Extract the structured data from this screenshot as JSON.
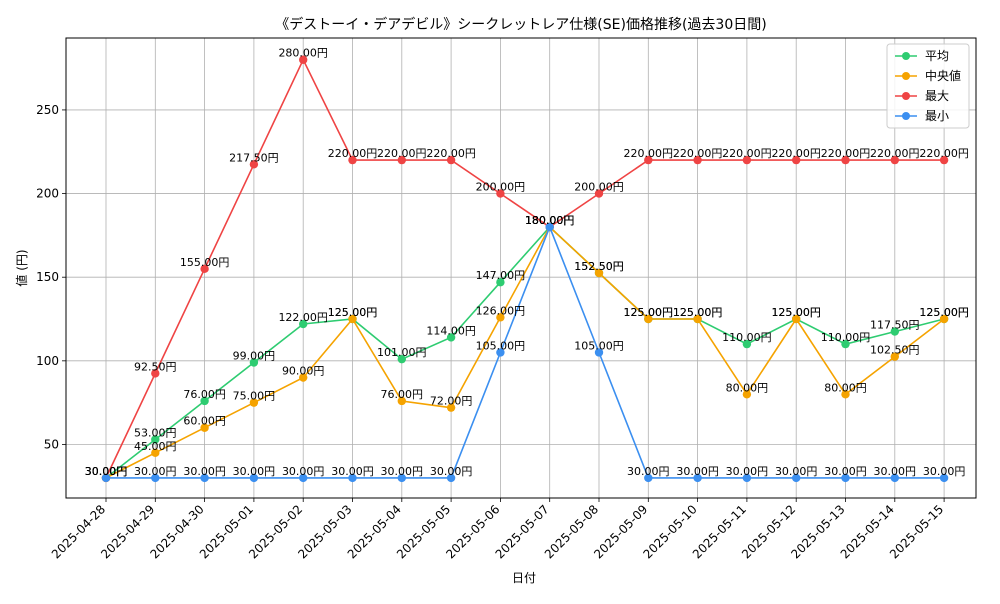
{
  "chart_data": {
    "type": "line",
    "title": "《デストーイ・デアデビル》シークレットレア仕様(SE)価格推移(過去30日間)",
    "xlabel": "日付",
    "ylabel": "値 (円)",
    "ylim": [
      18,
      293
    ],
    "yticks": [
      50,
      100,
      150,
      200,
      250
    ],
    "grid": true,
    "legend_position": "top-right",
    "unit_suffix": "円",
    "categories": [
      "2025-04-28",
      "2025-04-29",
      "2025-04-30",
      "2025-05-01",
      "2025-05-02",
      "2025-05-03",
      "2025-05-04",
      "2025-05-05",
      "2025-05-06",
      "2025-05-07",
      "2025-05-08",
      "2025-05-09",
      "2025-05-10",
      "2025-05-11",
      "2025-05-12",
      "2025-05-13",
      "2025-05-14",
      "2025-05-15"
    ],
    "series": [
      {
        "name": "平均",
        "color": "#2ecc71",
        "values": [
          30,
          53,
          76,
          99,
          122,
          125,
          101,
          114,
          147,
          180,
          152.5,
          125,
          125,
          110,
          125,
          110,
          117.5,
          125
        ],
        "labels": [
          "30.00円",
          "53.00円",
          "76.00円",
          "99.00円",
          "122.00円",
          "125.00円",
          "101.00円",
          "114.00円",
          "147.00円",
          "180.00円",
          "152.50円",
          "125.00円",
          "125.00円",
          "110.00円",
          "125.00円",
          "110.00円",
          "117.50円",
          "125.00円"
        ]
      },
      {
        "name": "中央値",
        "color": "#f5a300",
        "values": [
          30,
          45,
          60,
          75,
          90,
          125,
          76,
          72,
          126,
          180,
          152.5,
          125,
          125,
          80,
          125,
          80,
          102.5,
          125
        ],
        "labels": [
          "30.00円",
          "45.00円",
          "60.00円",
          "75.00円",
          "90.00円",
          "125.00円",
          "76.00円",
          "72.00円",
          "126.00円",
          "180.00円",
          "152.50円",
          "125.00円",
          "125.00円",
          "80.00円",
          "125.00円",
          "80.00円",
          "102.50円",
          "125.00円"
        ]
      },
      {
        "name": "最大",
        "color": "#ef4444",
        "values": [
          30,
          92.5,
          155,
          217.5,
          280,
          220,
          220,
          220,
          200,
          180,
          200,
          220,
          220,
          220,
          220,
          220,
          220,
          220
        ],
        "labels": [
          "30.00円",
          "92.50円",
          "155.00円",
          "217.50円",
          "280.00円",
          "220.00円",
          "220.00円",
          "220.00円",
          "200.00円",
          "180.00円",
          "200.00円",
          "220.00円",
          "220.00円",
          "220.00円",
          "220.00円",
          "220.00円",
          "220.00円",
          "220.00円"
        ]
      },
      {
        "name": "最小",
        "color": "#3b8ff0",
        "values": [
          30,
          30,
          30,
          30,
          30,
          30,
          30,
          30,
          105,
          180,
          105,
          30,
          30,
          30,
          30,
          30,
          30,
          30
        ],
        "labels": [
          "30.00円",
          "30.00円",
          "30.00円",
          "30.00円",
          "30.00円",
          "30.00円",
          "30.00円",
          "30.00円",
          "105.00円",
          "180.00円",
          "105.00円",
          "30.00円",
          "30.00円",
          "30.00円",
          "30.00円",
          "30.00円",
          "30.00円",
          "30.00円"
        ]
      }
    ]
  }
}
